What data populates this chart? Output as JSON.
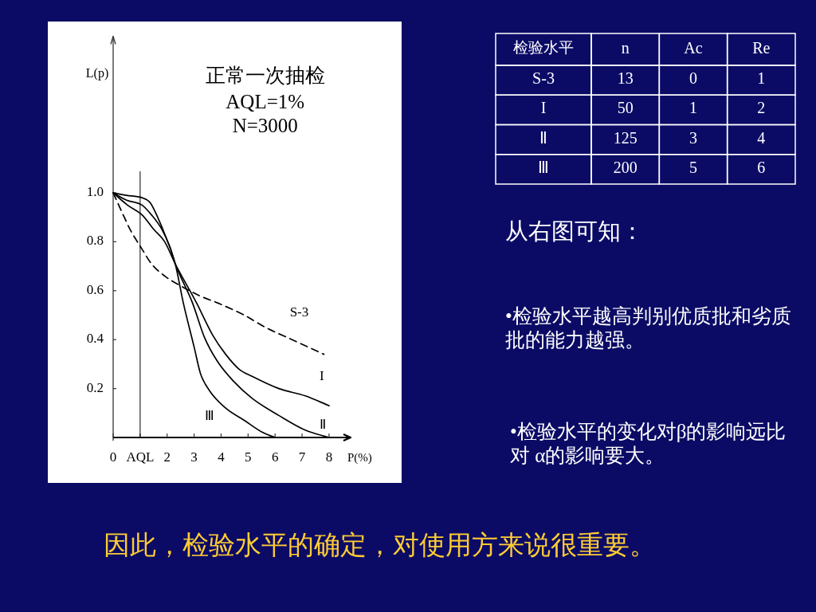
{
  "chart_data": [
    {
      "type": "line",
      "title": "正常一次抽检",
      "subtitle": "AQL=1%",
      "annotations": [
        "N=3000"
      ],
      "xlabel": "P(%)",
      "ylabel": "L(p)",
      "xlim": [
        0,
        8.8
      ],
      "ylim": [
        0,
        1.64
      ],
      "xticks": [
        {
          "value": 0,
          "label": "0"
        },
        {
          "value": 1,
          "label": "AQL"
        },
        2,
        3,
        4,
        5,
        6,
        7,
        8
      ],
      "yticks": [
        0.2,
        0.4,
        0.6,
        0.8,
        {
          "value": 1,
          "label": "1.0"
        }
      ],
      "ref_lines": [
        {
          "axis": "x",
          "value": 1,
          "label": null
        }
      ],
      "line_style": "solid",
      "series": [
        {
          "name": "S-3",
          "color": "#000000",
          "line_style": "dashed",
          "x": [
            0,
            0.33,
            0.63,
            1.07,
            1.42,
            1.91,
            2.5,
            3.19,
            3.87,
            4.86,
            5.64,
            6.63,
            7.81
          ],
          "values": [
            1.0,
            0.92,
            0.85,
            0.77,
            0.71,
            0.66,
            0.62,
            0.58,
            0.55,
            0.5,
            0.45,
            0.4,
            0.34
          ]
        },
        {
          "name": "I",
          "color": "#000000",
          "x": [
            0,
            0.53,
            1.07,
            1.51,
            1.91,
            2.3,
            3.09,
            3.68,
            4.17,
            4.66,
            5.15,
            6.14,
            7.12,
            8
          ],
          "values": [
            1.0,
            0.95,
            0.91,
            0.85,
            0.8,
            0.71,
            0.55,
            0.42,
            0.34,
            0.28,
            0.25,
            0.2,
            0.17,
            0.13
          ]
        },
        {
          "name": "Ⅱ",
          "color": "#000000",
          "x": [
            0,
            0.5,
            1.07,
            1.42,
            1.81,
            2.1,
            2.3,
            2.94,
            3.38,
            3.87,
            4.46,
            5.15,
            6.14,
            7.12,
            8
          ],
          "values": [
            1.0,
            0.97,
            0.95,
            0.91,
            0.85,
            0.78,
            0.71,
            0.55,
            0.41,
            0.31,
            0.23,
            0.16,
            0.09,
            0.03,
            0
          ]
        },
        {
          "name": "Ⅲ",
          "color": "#000000",
          "x": [
            0,
            0.5,
            1.07,
            1.37,
            1.65,
            1.95,
            2.3,
            2.6,
            3.0,
            3.24,
            3.58,
            4.17,
            4.86,
            5.55,
            6
          ],
          "values": [
            1.0,
            0.99,
            0.98,
            0.96,
            0.9,
            0.82,
            0.71,
            0.55,
            0.37,
            0.26,
            0.19,
            0.12,
            0.07,
            0.02,
            0
          ]
        }
      ]
    },
    {
      "type": "heatmap",
      "ylabel": "检验水平",
      "categories": [
        "n",
        "Ac",
        "Re"
      ],
      "y_categories": [
        "S-3",
        "I",
        "Ⅱ",
        "Ⅲ"
      ],
      "cells": [
        [
          13,
          0,
          1
        ],
        [
          50,
          1,
          2
        ],
        [
          125,
          3,
          4
        ],
        [
          200,
          5,
          6
        ]
      ],
      "data_labels": true
    },
    {
      "type": "other",
      "title": "从右图可知：",
      "annotations": [
        "•检验水平越高判别优质批和劣质批的能力越强。",
        "•检验水平的变化对β的影响远比对 α的影响要大。",
        "因此，检验水平的确定，对使用方来说很重要。"
      ]
    }
  ]
}
